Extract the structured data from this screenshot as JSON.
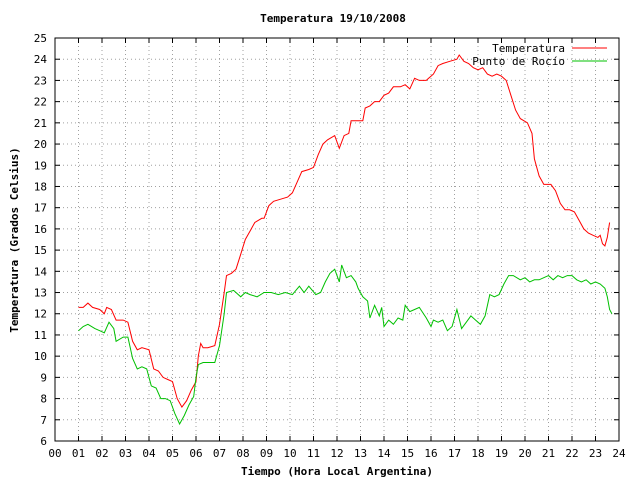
{
  "chart_data": {
    "type": "line",
    "title": "Temperatura 19/10/2008",
    "xlabel": "Tiempo (Hora Local Argentina)",
    "ylabel": "Temperatura (Grados Celsius)",
    "xlim": [
      0,
      24
    ],
    "ylim": [
      6,
      25
    ],
    "x_ticks": [
      0,
      1,
      2,
      3,
      4,
      5,
      6,
      7,
      8,
      9,
      10,
      11,
      12,
      13,
      14,
      15,
      16,
      17,
      18,
      19,
      20,
      21,
      22,
      23,
      24
    ],
    "x_tick_labels": [
      "00",
      "01",
      "02",
      "03",
      "04",
      "05",
      "06",
      "07",
      "08",
      "09",
      "10",
      "11",
      "12",
      "13",
      "14",
      "15",
      "16",
      "17",
      "18",
      "19",
      "20",
      "21",
      "22",
      "23",
      "24"
    ],
    "y_ticks": [
      6,
      7,
      8,
      9,
      10,
      11,
      12,
      13,
      14,
      15,
      16,
      17,
      18,
      19,
      20,
      21,
      22,
      23,
      24,
      25
    ],
    "grid": true,
    "legend": "top-right",
    "series": [
      {
        "name": "Temperatura",
        "color": "#ff0000",
        "points": [
          [
            1.0,
            12.3
          ],
          [
            1.2,
            12.3
          ],
          [
            1.4,
            12.5
          ],
          [
            1.6,
            12.3
          ],
          [
            1.9,
            12.2
          ],
          [
            2.1,
            12.0
          ],
          [
            2.2,
            12.3
          ],
          [
            2.4,
            12.2
          ],
          [
            2.6,
            11.7
          ],
          [
            2.9,
            11.7
          ],
          [
            3.1,
            11.6
          ],
          [
            3.3,
            10.7
          ],
          [
            3.5,
            10.3
          ],
          [
            3.7,
            10.4
          ],
          [
            4.0,
            10.3
          ],
          [
            4.2,
            9.4
          ],
          [
            4.4,
            9.3
          ],
          [
            4.6,
            9.0
          ],
          [
            4.8,
            8.9
          ],
          [
            5.0,
            8.8
          ],
          [
            5.2,
            8.0
          ],
          [
            5.4,
            7.6
          ],
          [
            5.6,
            7.9
          ],
          [
            5.8,
            8.4
          ],
          [
            6.0,
            8.8
          ],
          [
            6.1,
            10.0
          ],
          [
            6.2,
            10.6
          ],
          [
            6.3,
            10.4
          ],
          [
            6.5,
            10.4
          ],
          [
            6.8,
            10.5
          ],
          [
            7.0,
            11.5
          ],
          [
            7.2,
            13.0
          ],
          [
            7.3,
            13.8
          ],
          [
            7.5,
            13.9
          ],
          [
            7.7,
            14.1
          ],
          [
            7.9,
            14.8
          ],
          [
            8.1,
            15.5
          ],
          [
            8.3,
            15.9
          ],
          [
            8.5,
            16.3
          ],
          [
            8.8,
            16.5
          ],
          [
            8.9,
            16.5
          ],
          [
            9.1,
            17.1
          ],
          [
            9.3,
            17.3
          ],
          [
            9.6,
            17.4
          ],
          [
            9.9,
            17.5
          ],
          [
            10.1,
            17.7
          ],
          [
            10.3,
            18.2
          ],
          [
            10.5,
            18.7
          ],
          [
            10.8,
            18.8
          ],
          [
            11.0,
            18.9
          ],
          [
            11.2,
            19.5
          ],
          [
            11.4,
            20.0
          ],
          [
            11.6,
            20.2
          ],
          [
            11.9,
            20.4
          ],
          [
            12.1,
            19.8
          ],
          [
            12.3,
            20.4
          ],
          [
            12.5,
            20.5
          ],
          [
            12.6,
            21.1
          ],
          [
            12.9,
            21.1
          ],
          [
            13.1,
            21.1
          ],
          [
            13.2,
            21.7
          ],
          [
            13.4,
            21.8
          ],
          [
            13.6,
            22.0
          ],
          [
            13.8,
            22.0
          ],
          [
            14.0,
            22.3
          ],
          [
            14.2,
            22.4
          ],
          [
            14.4,
            22.7
          ],
          [
            14.7,
            22.7
          ],
          [
            14.9,
            22.8
          ],
          [
            15.1,
            22.6
          ],
          [
            15.3,
            23.1
          ],
          [
            15.5,
            23.0
          ],
          [
            15.8,
            23.0
          ],
          [
            15.9,
            23.1
          ],
          [
            16.1,
            23.3
          ],
          [
            16.3,
            23.7
          ],
          [
            16.5,
            23.8
          ],
          [
            16.8,
            23.9
          ],
          [
            17.1,
            24.0
          ],
          [
            17.2,
            24.2
          ],
          [
            17.4,
            23.9
          ],
          [
            17.6,
            23.8
          ],
          [
            17.8,
            23.6
          ],
          [
            18.0,
            23.5
          ],
          [
            18.2,
            23.6
          ],
          [
            18.4,
            23.3
          ],
          [
            18.6,
            23.2
          ],
          [
            18.8,
            23.3
          ],
          [
            19.0,
            23.2
          ],
          [
            19.2,
            23.0
          ],
          [
            19.4,
            22.3
          ],
          [
            19.6,
            21.6
          ],
          [
            19.8,
            21.2
          ],
          [
            20.1,
            21.0
          ],
          [
            20.3,
            20.5
          ],
          [
            20.4,
            19.3
          ],
          [
            20.6,
            18.5
          ],
          [
            20.8,
            18.1
          ],
          [
            21.1,
            18.1
          ],
          [
            21.3,
            17.8
          ],
          [
            21.5,
            17.2
          ],
          [
            21.7,
            16.9
          ],
          [
            21.9,
            16.9
          ],
          [
            22.1,
            16.8
          ],
          [
            22.3,
            16.4
          ],
          [
            22.5,
            16.0
          ],
          [
            22.7,
            15.8
          ],
          [
            22.9,
            15.7
          ],
          [
            23.1,
            15.6
          ],
          [
            23.2,
            15.7
          ],
          [
            23.3,
            15.3
          ],
          [
            23.4,
            15.2
          ],
          [
            23.5,
            15.6
          ],
          [
            23.6,
            16.3
          ]
        ]
      },
      {
        "name": "Punto de Rocío",
        "color": "#00c000",
        "points": [
          [
            1.0,
            11.2
          ],
          [
            1.2,
            11.4
          ],
          [
            1.4,
            11.5
          ],
          [
            1.7,
            11.3
          ],
          [
            1.9,
            11.2
          ],
          [
            2.1,
            11.1
          ],
          [
            2.3,
            11.6
          ],
          [
            2.5,
            11.3
          ],
          [
            2.6,
            10.7
          ],
          [
            2.9,
            10.9
          ],
          [
            3.1,
            10.9
          ],
          [
            3.3,
            9.9
          ],
          [
            3.5,
            9.4
          ],
          [
            3.7,
            9.5
          ],
          [
            3.9,
            9.4
          ],
          [
            4.1,
            8.6
          ],
          [
            4.3,
            8.5
          ],
          [
            4.5,
            8.0
          ],
          [
            4.7,
            8.0
          ],
          [
            4.9,
            7.9
          ],
          [
            5.1,
            7.3
          ],
          [
            5.3,
            6.8
          ],
          [
            5.5,
            7.2
          ],
          [
            5.7,
            7.7
          ],
          [
            5.9,
            8.1
          ],
          [
            6.0,
            9.0
          ],
          [
            6.1,
            9.6
          ],
          [
            6.3,
            9.7
          ],
          [
            6.5,
            9.7
          ],
          [
            6.8,
            9.7
          ],
          [
            7.0,
            10.5
          ],
          [
            7.2,
            12.0
          ],
          [
            7.3,
            13.0
          ],
          [
            7.6,
            13.1
          ],
          [
            7.9,
            12.8
          ],
          [
            8.1,
            13.0
          ],
          [
            8.3,
            12.9
          ],
          [
            8.6,
            12.8
          ],
          [
            8.9,
            13.0
          ],
          [
            9.2,
            13.0
          ],
          [
            9.5,
            12.9
          ],
          [
            9.8,
            13.0
          ],
          [
            10.1,
            12.9
          ],
          [
            10.4,
            13.3
          ],
          [
            10.6,
            13.0
          ],
          [
            10.8,
            13.3
          ],
          [
            11.1,
            12.9
          ],
          [
            11.3,
            13.0
          ],
          [
            11.5,
            13.5
          ],
          [
            11.7,
            13.9
          ],
          [
            11.9,
            14.1
          ],
          [
            12.1,
            13.5
          ],
          [
            12.2,
            14.3
          ],
          [
            12.4,
            13.7
          ],
          [
            12.6,
            13.8
          ],
          [
            12.8,
            13.5
          ],
          [
            12.9,
            13.2
          ],
          [
            13.1,
            12.8
          ],
          [
            13.3,
            12.6
          ],
          [
            13.4,
            11.8
          ],
          [
            13.6,
            12.4
          ],
          [
            13.8,
            11.9
          ],
          [
            13.9,
            12.3
          ],
          [
            14.0,
            11.4
          ],
          [
            14.2,
            11.7
          ],
          [
            14.4,
            11.5
          ],
          [
            14.6,
            11.8
          ],
          [
            14.8,
            11.7
          ],
          [
            14.9,
            12.4
          ],
          [
            15.1,
            12.1
          ],
          [
            15.3,
            12.2
          ],
          [
            15.5,
            12.3
          ],
          [
            15.8,
            11.8
          ],
          [
            16.0,
            11.4
          ],
          [
            16.1,
            11.7
          ],
          [
            16.3,
            11.6
          ],
          [
            16.5,
            11.7
          ],
          [
            16.7,
            11.2
          ],
          [
            16.9,
            11.4
          ],
          [
            17.1,
            12.2
          ],
          [
            17.3,
            11.3
          ],
          [
            17.5,
            11.6
          ],
          [
            17.7,
            11.9
          ],
          [
            17.9,
            11.7
          ],
          [
            18.1,
            11.5
          ],
          [
            18.3,
            11.9
          ],
          [
            18.5,
            12.9
          ],
          [
            18.7,
            12.8
          ],
          [
            18.9,
            12.9
          ],
          [
            19.1,
            13.4
          ],
          [
            19.3,
            13.8
          ],
          [
            19.5,
            13.8
          ],
          [
            19.8,
            13.6
          ],
          [
            20.0,
            13.7
          ],
          [
            20.2,
            13.5
          ],
          [
            20.4,
            13.6
          ],
          [
            20.6,
            13.6
          ],
          [
            20.8,
            13.7
          ],
          [
            21.0,
            13.8
          ],
          [
            21.2,
            13.6
          ],
          [
            21.4,
            13.8
          ],
          [
            21.6,
            13.7
          ],
          [
            21.8,
            13.8
          ],
          [
            22.0,
            13.8
          ],
          [
            22.2,
            13.6
          ],
          [
            22.4,
            13.5
          ],
          [
            22.6,
            13.6
          ],
          [
            22.8,
            13.4
          ],
          [
            23.0,
            13.5
          ],
          [
            23.2,
            13.4
          ],
          [
            23.4,
            13.2
          ],
          [
            23.5,
            12.8
          ],
          [
            23.6,
            12.2
          ],
          [
            23.7,
            12.0
          ]
        ]
      }
    ]
  }
}
